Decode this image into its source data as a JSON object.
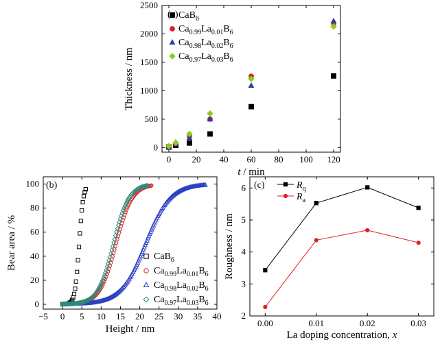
{
  "chart_data": [
    {
      "type": "scatter",
      "panel": "(a)",
      "xlabel_italic": "t",
      "xlabel_rest": " / min",
      "ylabel": "Thickness / nm",
      "xlim": [
        -5,
        125
      ],
      "ylim": [
        -80,
        2500
      ],
      "xticks": [
        0,
        20,
        40,
        60,
        80,
        100,
        120
      ],
      "yticks": [
        0,
        500,
        1000,
        1500,
        2000,
        2500
      ],
      "legend_position": "top-left",
      "series": [
        {
          "name_parts": [
            [
              "Ca",
              ""
            ],
            [
              "B",
              ""
            ],
            [
              "6",
              "sub"
            ]
          ],
          "marker": "square",
          "color": "#000000",
          "x": [
            0,
            5,
            15,
            30,
            60,
            120
          ],
          "y": [
            10,
            40,
            80,
            240,
            720,
            1260
          ]
        },
        {
          "name_parts": [
            [
              "Ca",
              ""
            ],
            [
              "0.99",
              "sub"
            ],
            [
              "La",
              ""
            ],
            [
              "0.01",
              "sub"
            ],
            [
              "B",
              ""
            ],
            [
              "6",
              "sub"
            ]
          ],
          "marker": "circle",
          "color": "#dd1f1f",
          "x": [
            0,
            5,
            15,
            30,
            60,
            120
          ],
          "y": [
            15,
            70,
            200,
            500,
            1255,
            2185
          ]
        },
        {
          "name_parts": [
            [
              "Ca",
              ""
            ],
            [
              "0.98",
              "sub"
            ],
            [
              "La",
              ""
            ],
            [
              "0.02",
              "sub"
            ],
            [
              "B",
              ""
            ],
            [
              "6",
              "sub"
            ]
          ],
          "marker": "triangle",
          "color": "#2a3fa0",
          "x": [
            0,
            5,
            15,
            30,
            60,
            120
          ],
          "y": [
            20,
            90,
            170,
            500,
            1090,
            2225
          ]
        },
        {
          "name_parts": [
            [
              "Ca",
              ""
            ],
            [
              "0.97",
              "sub"
            ],
            [
              "La",
              ""
            ],
            [
              "0.03",
              "sub"
            ],
            [
              "B",
              ""
            ],
            [
              "6",
              "sub"
            ]
          ],
          "marker": "diamond",
          "color": "#8ccc22",
          "x": [
            0,
            5,
            15,
            30,
            60,
            120
          ],
          "y": [
            25,
            85,
            240,
            600,
            1210,
            2130
          ]
        }
      ]
    },
    {
      "type": "scatter",
      "panel": "(b)",
      "xlabel": "Height / nm",
      "ylabel": "Bear area / %",
      "xlim": [
        -5,
        40
      ],
      "ylim": [
        -4,
        106
      ],
      "xticks": [
        -5,
        0,
        5,
        10,
        15,
        20,
        25,
        30,
        35,
        40
      ],
      "yticks": [
        0,
        20,
        40,
        60,
        80,
        100
      ],
      "legend_position": "bottom-right",
      "curve": "cumulative sigmoid, 0 to 100 percent",
      "series": [
        {
          "name_parts": [
            [
              "Ca",
              ""
            ],
            [
              "B",
              ""
            ],
            [
              "6",
              "sub"
            ]
          ],
          "marker": "open-square",
          "color": "#000000",
          "x_range": [
            0,
            6
          ],
          "midpoint": 4.3,
          "width": 0.55
        },
        {
          "name_parts": [
            [
              "Ca",
              ""
            ],
            [
              "0.99",
              "sub"
            ],
            [
              "La",
              ""
            ],
            [
              "0.01",
              "sub"
            ],
            [
              "B",
              ""
            ],
            [
              "6",
              "sub"
            ]
          ],
          "marker": "open-circle",
          "color": "#e02020",
          "x_range": [
            0,
            23
          ],
          "midpoint": 13.8,
          "width": 2.1
        },
        {
          "name_parts": [
            [
              "Ca",
              ""
            ],
            [
              "0.98",
              "sub"
            ],
            [
              "La",
              ""
            ],
            [
              "0.02",
              "sub"
            ],
            [
              "B",
              ""
            ],
            [
              "6",
              "sub"
            ]
          ],
          "marker": "open-triangle",
          "color": "#2a3fc0",
          "x_range": [
            0,
            37
          ],
          "midpoint": 21.5,
          "width": 3.2
        },
        {
          "name_parts": [
            [
              "Ca",
              ""
            ],
            [
              "0.97",
              "sub"
            ],
            [
              "La",
              ""
            ],
            [
              "0.03",
              "sub"
            ],
            [
              "B",
              ""
            ],
            [
              "6",
              "sub"
            ]
          ],
          "marker": "open-diamond",
          "color": "#2e8b7a",
          "x_range": [
            0,
            22
          ],
          "midpoint": 13.2,
          "width": 2.0
        }
      ]
    },
    {
      "type": "line",
      "panel": "(c)",
      "xlabel_plain": "La doping concentration, ",
      "xlabel_italic": "x",
      "ylabel": "Roughness / nm",
      "xlim": [
        -0.003,
        0.033
      ],
      "ylim": [
        2.0,
        6.35
      ],
      "xticks": [
        "0.00",
        "0.01",
        "0.02",
        "0.03"
      ],
      "yticks": [
        2,
        3,
        4,
        5,
        6
      ],
      "legend_position": "top-left",
      "series": [
        {
          "name_main": "R",
          "name_sub": "q",
          "marker": "square",
          "color": "#000000",
          "x": [
            0.0,
            0.01,
            0.02,
            0.03
          ],
          "y": [
            3.43,
            5.53,
            6.02,
            5.38
          ]
        },
        {
          "name_main": "R",
          "name_sub": "a",
          "marker": "circle",
          "color": "#e02020",
          "x": [
            0.0,
            0.01,
            0.02,
            0.03
          ],
          "y": [
            2.28,
            4.37,
            4.68,
            4.29
          ]
        }
      ]
    }
  ]
}
